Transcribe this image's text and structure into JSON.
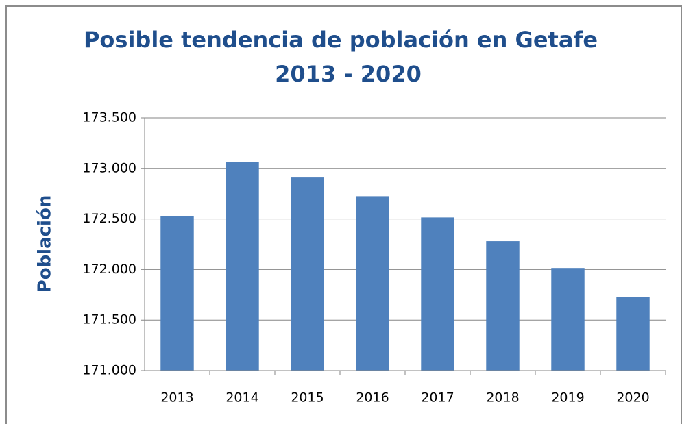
{
  "chart_data": {
    "type": "bar",
    "title": [
      "Posible tendencia de población en Getafe",
      "2013 - 2020"
    ],
    "y_label": "Población",
    "categories": [
      "2013",
      "2014",
      "2015",
      "2016",
      "2017",
      "2018",
      "2019",
      "2020"
    ],
    "values": [
      172525,
      173060,
      172910,
      172725,
      172515,
      172280,
      172015,
      171725
    ],
    "color": "#4f81bd",
    "ylim": [
      171000,
      173500
    ],
    "yticks": [
      {
        "value": 171000,
        "label": "171.000"
      },
      {
        "value": 171500,
        "label": "171.500"
      },
      {
        "value": 172000,
        "label": "172.000"
      },
      {
        "value": 172500,
        "label": "172.500"
      },
      {
        "value": 173000,
        "label": "173.000"
      },
      {
        "value": 173500,
        "label": "173.500"
      }
    ],
    "grid": true
  }
}
